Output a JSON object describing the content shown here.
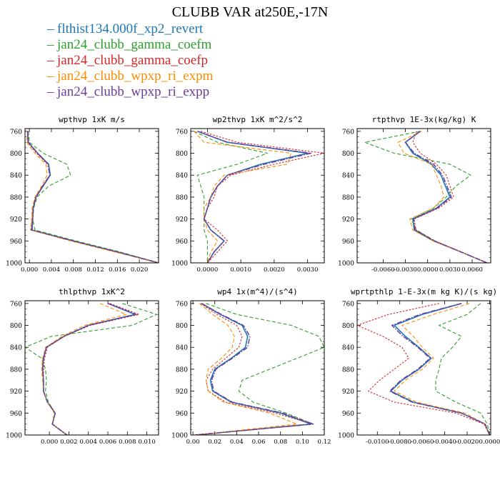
{
  "title": "CLUBB VAR at250E,-17N",
  "legend": [
    {
      "name": "flthist134.000f_xp2_revert",
      "color": "#1f77b4"
    },
    {
      "name": "jan24_clubb_gamma_coefm",
      "color": "#2ca02c"
    },
    {
      "name": "jan24_clubb_gamma_coefp",
      "color": "#d62728"
    },
    {
      "name": "jan24_clubb_wpxp_ri_expm",
      "color": "#ff8c00"
    },
    {
      "name": "jan24_clubb_wpxp_ri_expp",
      "color": "#6a3d9a"
    }
  ],
  "chart_data": [
    {
      "type": "line",
      "title": "wpthvp   1xK m/s",
      "ylim": [
        1000,
        755
      ],
      "yticks": [
        760,
        800,
        840,
        880,
        920,
        960,
        1000
      ],
      "xlim": [
        -0.0008,
        0.0235
      ],
      "xticks": [
        0,
        0.004,
        0.008,
        0.012,
        0.016,
        0.02
      ],
      "xticklabels": [
        "0.000",
        "0.004",
        "0.008",
        "0.012",
        "0.016",
        "0.020"
      ],
      "y": [
        760,
        780,
        800,
        820,
        840,
        860,
        880,
        900,
        920,
        940,
        960,
        980,
        1000
      ],
      "series": [
        {
          "name": "flthist134.000f_xp2_revert",
          "x": [
            -0.0003,
            -0.0002,
            0.0015,
            0.0035,
            0.0038,
            0.0025,
            0.0012,
            0.0007,
            0.0006,
            0.0005,
            0.008,
            0.016,
            0.0235
          ]
        },
        {
          "name": "jan24_clubb_gamma_coefm",
          "x": [
            -0.0002,
            0.0,
            0.0025,
            0.0068,
            0.0075,
            0.0035,
            0.0014,
            0.0008,
            0.0006,
            0.001,
            0.0085,
            0.0165,
            0.0235
          ]
        },
        {
          "name": "jan24_clubb_gamma_coefp",
          "x": [
            -0.0004,
            -0.0003,
            0.0013,
            0.0033,
            0.0037,
            0.0024,
            0.0011,
            0.0006,
            0.0005,
            0.0003,
            0.0078,
            0.0158,
            0.0235
          ]
        },
        {
          "name": "jan24_clubb_wpxp_ri_expm",
          "x": [
            -0.0003,
            -0.0005,
            0.001,
            0.003,
            0.0032,
            0.0022,
            0.001,
            0.0005,
            0.0004,
            0.0002,
            0.0075,
            0.0155,
            0.0235
          ]
        },
        {
          "name": "jan24_clubb_wpxp_ri_expp",
          "x": [
            -0.0003,
            -0.0002,
            0.0015,
            0.0034,
            0.0037,
            0.0024,
            0.0012,
            0.0007,
            0.0006,
            0.0004,
            0.008,
            0.016,
            0.0235
          ]
        }
      ]
    },
    {
      "type": "line",
      "title": "wp2thvp   1xK m^2/s^2",
      "ylim": [
        1000,
        755
      ],
      "yticks": [
        760,
        800,
        840,
        880,
        920,
        960,
        1000
      ],
      "xlim": [
        -0.0005,
        0.0035
      ],
      "xticks": [
        0,
        0.001,
        0.002,
        0.003
      ],
      "xticklabels": [
        "0.0000",
        "0.0010",
        "0.0020",
        "0.0030"
      ],
      "y": [
        760,
        780,
        800,
        820,
        840,
        860,
        880,
        900,
        920,
        940,
        960,
        980,
        1000
      ],
      "series": [
        {
          "name": "flthist134.000f_xp2_revert",
          "x": [
            -0.0003,
            0.0006,
            0.003,
            0.0016,
            0.0006,
            0.0003,
            0.0001,
            0.0,
            -0.0001,
            0.0001,
            0.0005,
            0.0002,
            0.0
          ]
        },
        {
          "name": "jan24_clubb_gamma_coefm",
          "x": [
            -0.0004,
            0.0003,
            0.0018,
            0.0009,
            -0.0003,
            -0.0002,
            -0.0001,
            -0.0001,
            -0.0001,
            -0.0001,
            0.0,
            0.0,
            0.0
          ]
        },
        {
          "name": "jan24_clubb_gamma_coefp",
          "x": [
            -0.0002,
            0.0009,
            0.0035,
            0.002,
            0.0007,
            0.0003,
            0.0002,
            0.0,
            -0.0001,
            0.0003,
            0.0006,
            0.0003,
            0.0
          ]
        },
        {
          "name": "jan24_clubb_wpxp_ri_expm",
          "x": [
            -0.0004,
            -0.0001,
            0.0025,
            0.0024,
            0.0005,
            0.0002,
            0.0001,
            -0.0001,
            -0.0001,
            0.0,
            0.0003,
            0.0001,
            0.0
          ]
        },
        {
          "name": "jan24_clubb_wpxp_ri_expp",
          "x": [
            -0.0003,
            0.0006,
            0.0031,
            0.0017,
            0.0006,
            0.0003,
            0.0001,
            0.0,
            -0.0001,
            0.0001,
            0.0005,
            0.0002,
            0.0
          ]
        }
      ]
    },
    {
      "type": "line",
      "title": "rtpthvp   1E-3x(kg/kg) K",
      "ylim": [
        1000,
        755
      ],
      "yticks": [
        760,
        800,
        840,
        880,
        920,
        960,
        1000
      ],
      "xlim": [
        -0.0095,
        0.0085
      ],
      "xticks": [
        -0.006,
        -0.003,
        0,
        0.003,
        0.006
      ],
      "xticklabels": [
        "-0.0060",
        "-0.0030",
        "0.0000",
        "0.0030",
        "0.0060"
      ],
      "y": [
        760,
        780,
        800,
        820,
        840,
        860,
        880,
        900,
        920,
        940,
        960,
        980,
        1000
      ],
      "series": [
        {
          "name": "flthist134.000f_xp2_revert",
          "x": [
            -0.001,
            -0.003,
            -0.002,
            0.0005,
            0.0018,
            0.0024,
            0.003,
            0.0012,
            -0.002,
            -0.0018,
            0.0008,
            0.0045,
            0.008
          ]
        },
        {
          "name": "jan24_clubb_gamma_coefm",
          "x": [
            -0.001,
            -0.0085,
            -0.0045,
            0.003,
            0.0058,
            0.0038,
            0.0025,
            0.0008,
            -0.0022,
            -0.0015,
            0.001,
            0.0045,
            0.008
          ]
        },
        {
          "name": "jan24_clubb_gamma_coefp",
          "x": [
            -0.0015,
            -0.002,
            -0.001,
            0.0012,
            0.0025,
            0.003,
            0.0035,
            0.0015,
            -0.0018,
            -0.0016,
            0.001,
            0.0045,
            0.008
          ]
        },
        {
          "name": "jan24_clubb_wpxp_ri_expm",
          "x": [
            -0.0008,
            -0.004,
            -0.0032,
            0.0005,
            0.0012,
            0.0018,
            0.0022,
            0.0008,
            -0.0024,
            -0.002,
            0.0007,
            0.0045,
            0.008
          ]
        },
        {
          "name": "jan24_clubb_wpxp_ri_expp",
          "x": [
            -0.001,
            -0.003,
            -0.0018,
            0.0008,
            0.002,
            0.0026,
            0.0032,
            0.0013,
            -0.0019,
            -0.0017,
            0.0009,
            0.0045,
            0.008
          ]
        }
      ]
    },
    {
      "type": "line",
      "title": "thlpthvp   1xK^2",
      "ylim": [
        1000,
        755
      ],
      "yticks": [
        760,
        800,
        840,
        880,
        920,
        960,
        1000
      ],
      "xlim": [
        -0.0025,
        0.0112
      ],
      "xticks": [
        0,
        0.002,
        0.004,
        0.006,
        0.008,
        0.01
      ],
      "xticklabels": [
        "0.000",
        "0.002",
        "0.004",
        "0.006",
        "0.008",
        "0.010"
      ],
      "y": [
        760,
        780,
        800,
        820,
        840,
        860,
        880,
        900,
        920,
        940,
        960,
        980,
        1000
      ],
      "series": [
        {
          "name": "flthist134.000f_xp2_revert",
          "x": [
            0.006,
            0.0088,
            0.004,
            0.0015,
            -0.0003,
            -0.0006,
            -0.0007,
            -0.0006,
            -0.0006,
            -0.0002,
            0.0006,
            0.0003,
            0.0018
          ]
        },
        {
          "name": "jan24_clubb_gamma_coefm",
          "x": [
            0.0075,
            0.011,
            0.0085,
            0.0002,
            -0.0025,
            -0.0008,
            -0.0004,
            -0.0003,
            -0.0004,
            -0.0001,
            0.0006,
            0.0003,
            0.0018
          ]
        },
        {
          "name": "jan24_clubb_gamma_coefp",
          "x": [
            0.0062,
            0.0092,
            0.0042,
            0.0015,
            -0.0002,
            -0.0005,
            -0.0006,
            -0.0006,
            -0.0006,
            -0.0002,
            0.0006,
            0.0003,
            0.0018
          ]
        },
        {
          "name": "jan24_clubb_wpxp_ri_expm",
          "x": [
            0.0052,
            0.0079,
            0.0036,
            0.0013,
            -0.0004,
            -0.0007,
            -0.0008,
            -0.0007,
            -0.0006,
            -0.0002,
            0.0005,
            0.0003,
            0.0018
          ]
        },
        {
          "name": "jan24_clubb_wpxp_ri_expp",
          "x": [
            0.006,
            0.0089,
            0.004,
            0.0015,
            -0.0003,
            -0.0006,
            -0.0007,
            -0.0006,
            -0.0006,
            -0.0002,
            0.0006,
            0.0003,
            0.0018
          ]
        }
      ]
    },
    {
      "type": "line",
      "title": "wp4   1x(m^4)/(s^4)",
      "ylim": [
        1000,
        755
      ],
      "yticks": [
        760,
        800,
        840,
        880,
        920,
        960,
        1000
      ],
      "xlim": [
        -0.002,
        0.12
      ],
      "xticks": [
        0,
        0.02,
        0.04,
        0.06,
        0.08,
        0.1,
        0.12
      ],
      "xticklabels": [
        "0.00",
        "0.02",
        "0.04",
        "0.06",
        "0.08",
        "0.10",
        "0.12"
      ],
      "y": [
        760,
        780,
        800,
        820,
        840,
        860,
        880,
        900,
        920,
        940,
        960,
        980,
        1000
      ],
      "series": [
        {
          "name": "flthist134.000f_xp2_revert",
          "x": [
            0.008,
            0.025,
            0.045,
            0.05,
            0.048,
            0.035,
            0.02,
            0.016,
            0.018,
            0.035,
            0.08,
            0.108,
            0.002
          ]
        },
        {
          "name": "jan24_clubb_gamma_coefm",
          "x": [
            0.012,
            0.04,
            0.09,
            0.115,
            0.12,
            0.095,
            0.07,
            0.045,
            0.042,
            0.055,
            0.085,
            0.11,
            0.002
          ]
        },
        {
          "name": "jan24_clubb_gamma_coefp",
          "x": [
            0.007,
            0.022,
            0.04,
            0.045,
            0.042,
            0.03,
            0.018,
            0.012,
            0.014,
            0.03,
            0.075,
            0.11,
            0.002
          ]
        },
        {
          "name": "jan24_clubb_wpxp_ri_expm",
          "x": [
            0.006,
            0.018,
            0.032,
            0.038,
            0.036,
            0.026,
            0.014,
            0.012,
            0.014,
            0.028,
            0.07,
            0.095,
            0.002
          ]
        },
        {
          "name": "jan24_clubb_wpxp_ri_expp",
          "x": [
            0.008,
            0.026,
            0.046,
            0.052,
            0.05,
            0.036,
            0.021,
            0.017,
            0.019,
            0.036,
            0.082,
            0.11,
            0.002
          ]
        }
      ]
    },
    {
      "type": "line",
      "title": "wprtpthlp   1-E-3x(m kg K)/(s kg)",
      "ylim": [
        1000,
        755
      ],
      "yticks": [
        760,
        800,
        840,
        880,
        920,
        960,
        1000
      ],
      "xlim": [
        -0.0118,
        0.0001
      ],
      "xticks": [
        -0.01,
        -0.008,
        -0.006,
        -0.004,
        -0.002,
        0
      ],
      "xticklabels": [
        "-0.0100",
        "-0.0080",
        "-0.0060",
        "-0.0040",
        "-0.0020",
        "0.0000"
      ],
      "y": [
        760,
        780,
        800,
        820,
        840,
        860,
        880,
        900,
        920,
        940,
        960,
        980,
        1000
      ],
      "series": [
        {
          "name": "flthist134.000f_xp2_revert",
          "x": [
            -0.0025,
            -0.006,
            -0.0085,
            -0.0075,
            -0.0063,
            -0.0052,
            -0.0063,
            -0.0078,
            -0.0088,
            -0.0068,
            -0.0025,
            -0.0004,
            0.0
          ]
        },
        {
          "name": "jan24_clubb_gamma_coefm",
          "x": [
            -0.0008,
            -0.002,
            -0.0045,
            -0.0025,
            -0.0033,
            -0.0043,
            -0.0045,
            -0.0048,
            -0.0048,
            -0.003,
            -0.0008,
            -0.0002,
            0.0
          ]
        },
        {
          "name": "jan24_clubb_gamma_coefp",
          "x": [
            -0.0045,
            -0.009,
            -0.0118,
            -0.0095,
            -0.0078,
            -0.0072,
            -0.0085,
            -0.0098,
            -0.0108,
            -0.0085,
            -0.003,
            -0.0005,
            0.0
          ]
        },
        {
          "name": "jan24_clubb_wpxp_ri_expm",
          "x": [
            -0.0018,
            -0.005,
            -0.0078,
            -0.0068,
            -0.006,
            -0.005,
            -0.006,
            -0.0075,
            -0.0085,
            -0.0065,
            -0.0022,
            -0.0004,
            0.0
          ]
        },
        {
          "name": "jan24_clubb_wpxp_ri_expp",
          "x": [
            -0.0025,
            -0.0062,
            -0.0087,
            -0.0077,
            -0.0064,
            -0.0053,
            -0.0064,
            -0.0079,
            -0.0089,
            -0.0069,
            -0.0025,
            -0.0004,
            0.0
          ]
        }
      ]
    }
  ]
}
